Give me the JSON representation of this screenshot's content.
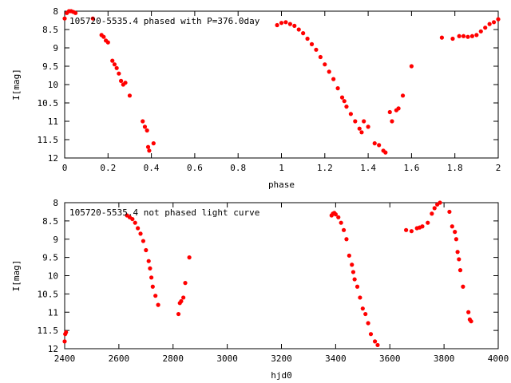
{
  "colors": {
    "points": "#ff0000",
    "frame": "#000000",
    "background": "#ffffff"
  },
  "chart_data": [
    {
      "type": "scatter",
      "title": "105720-5535.4 phased with P=376.0day",
      "xlabel": "phase",
      "ylabel": "I[mag]",
      "xlim": [
        0,
        2
      ],
      "ylim": [
        8,
        12
      ],
      "y_inverted": true,
      "grid": false,
      "x_ticks": [
        0,
        0.2,
        0.4,
        0.6,
        0.8,
        1,
        1.2,
        1.4,
        1.6,
        1.8,
        2
      ],
      "x_tick_labels": [
        "0",
        "0.2",
        "0.4",
        "0.6",
        "0.8",
        "1",
        "1.2",
        "1.4",
        "1.6",
        "1.8",
        "2"
      ],
      "y_ticks": [
        8,
        8.5,
        9,
        9.5,
        10,
        10.5,
        11,
        11.5,
        12
      ],
      "y_tick_labels": [
        "8",
        "8.5",
        "9",
        "9.5",
        "10",
        "10.5",
        "11",
        "11.5",
        "12"
      ],
      "series": [
        {
          "color": "#ff0000",
          "x": [
            0.0,
            0.01,
            0.02,
            0.03,
            0.04,
            0.05,
            0.13,
            0.17,
            0.18,
            0.19,
            0.2,
            0.22,
            0.23,
            0.24,
            0.25,
            0.26,
            0.27,
            0.28,
            0.3,
            0.36,
            0.37,
            0.38,
            0.385,
            0.39,
            0.41,
            0.98,
            1.0,
            1.02,
            1.04,
            1.06,
            1.08,
            1.1,
            1.12,
            1.14,
            1.16,
            1.18,
            1.2,
            1.22,
            1.24,
            1.26,
            1.28,
            1.29,
            1.3,
            1.32,
            1.34,
            1.36,
            1.37,
            1.38,
            1.4,
            1.43,
            1.45,
            1.47,
            1.48,
            1.5,
            1.51,
            1.53,
            1.54,
            1.56,
            1.6,
            1.74,
            1.79,
            1.82,
            1.84,
            1.86,
            1.88,
            1.9,
            1.92,
            1.94,
            1.96,
            1.98,
            2.0
          ],
          "y": [
            8.2,
            8.05,
            8.0,
            8.0,
            8.02,
            8.05,
            8.2,
            8.65,
            8.7,
            8.8,
            8.85,
            9.35,
            9.45,
            9.55,
            9.7,
            9.9,
            10.0,
            9.95,
            10.3,
            11.0,
            11.15,
            11.25,
            11.7,
            11.8,
            11.6,
            8.38,
            8.32,
            8.3,
            8.35,
            8.4,
            8.5,
            8.6,
            8.75,
            8.9,
            9.05,
            9.25,
            9.45,
            9.65,
            9.85,
            10.1,
            10.35,
            10.45,
            10.6,
            10.8,
            11.0,
            11.2,
            11.3,
            11.0,
            11.15,
            11.6,
            11.65,
            11.8,
            11.85,
            10.75,
            11.0,
            10.7,
            10.65,
            10.3,
            9.5,
            8.72,
            8.75,
            8.68,
            8.68,
            8.7,
            8.68,
            8.65,
            8.55,
            8.45,
            8.35,
            8.3,
            8.22
          ]
        }
      ]
    },
    {
      "type": "scatter",
      "title": "105720-5535.4 not phased light curve",
      "xlabel": "hjd0",
      "ylabel": "I[mag]",
      "xlim": [
        2400,
        4000
      ],
      "ylim": [
        8,
        12
      ],
      "y_inverted": true,
      "grid": false,
      "x_ticks": [
        2400,
        2600,
        2800,
        3000,
        3200,
        3400,
        3600,
        3800,
        4000
      ],
      "x_tick_labels": [
        "2400",
        "2600",
        "2800",
        "3000",
        "3200",
        "3400",
        "3600",
        "3800",
        "4000"
      ],
      "y_ticks": [
        8,
        8.5,
        9,
        9.5,
        10,
        10.5,
        11,
        11.5,
        12
      ],
      "y_tick_labels": [
        "8",
        "8.5",
        "9",
        "9.5",
        "10",
        "10.5",
        "11",
        "11.5",
        "12"
      ],
      "series": [
        {
          "color": "#ff0000",
          "x": [
            2400,
            2402,
            2405,
            2630,
            2640,
            2650,
            2660,
            2670,
            2680,
            2690,
            2700,
            2710,
            2715,
            2720,
            2725,
            2735,
            2745,
            2820,
            2825,
            2830,
            2838,
            2845,
            2860,
            3385,
            3390,
            3395,
            3400,
            3410,
            3420,
            3430,
            3440,
            3450,
            3460,
            3465,
            3470,
            3480,
            3490,
            3500,
            3510,
            3520,
            3530,
            3545,
            3555,
            3660,
            3680,
            3700,
            3710,
            3720,
            3740,
            3755,
            3765,
            3775,
            3785,
            3820,
            3830,
            3840,
            3845,
            3850,
            3855,
            3860,
            3870,
            3890,
            3895,
            3900
          ],
          "y": [
            11.8,
            11.6,
            11.55,
            8.35,
            8.4,
            8.45,
            8.55,
            8.7,
            8.85,
            9.05,
            9.3,
            9.6,
            9.8,
            10.05,
            10.3,
            10.55,
            10.8,
            11.05,
            10.75,
            10.7,
            10.6,
            10.2,
            9.5,
            8.35,
            8.3,
            8.28,
            8.32,
            8.4,
            8.55,
            8.75,
            9.0,
            9.45,
            9.7,
            9.9,
            10.1,
            10.3,
            10.6,
            10.9,
            11.05,
            11.3,
            11.6,
            11.8,
            11.9,
            8.75,
            8.78,
            8.7,
            8.68,
            8.65,
            8.55,
            8.3,
            8.15,
            8.05,
            8.0,
            8.25,
            8.65,
            8.8,
            9.0,
            9.35,
            9.55,
            9.85,
            10.3,
            11.0,
            11.2,
            11.25
          ]
        }
      ]
    }
  ]
}
